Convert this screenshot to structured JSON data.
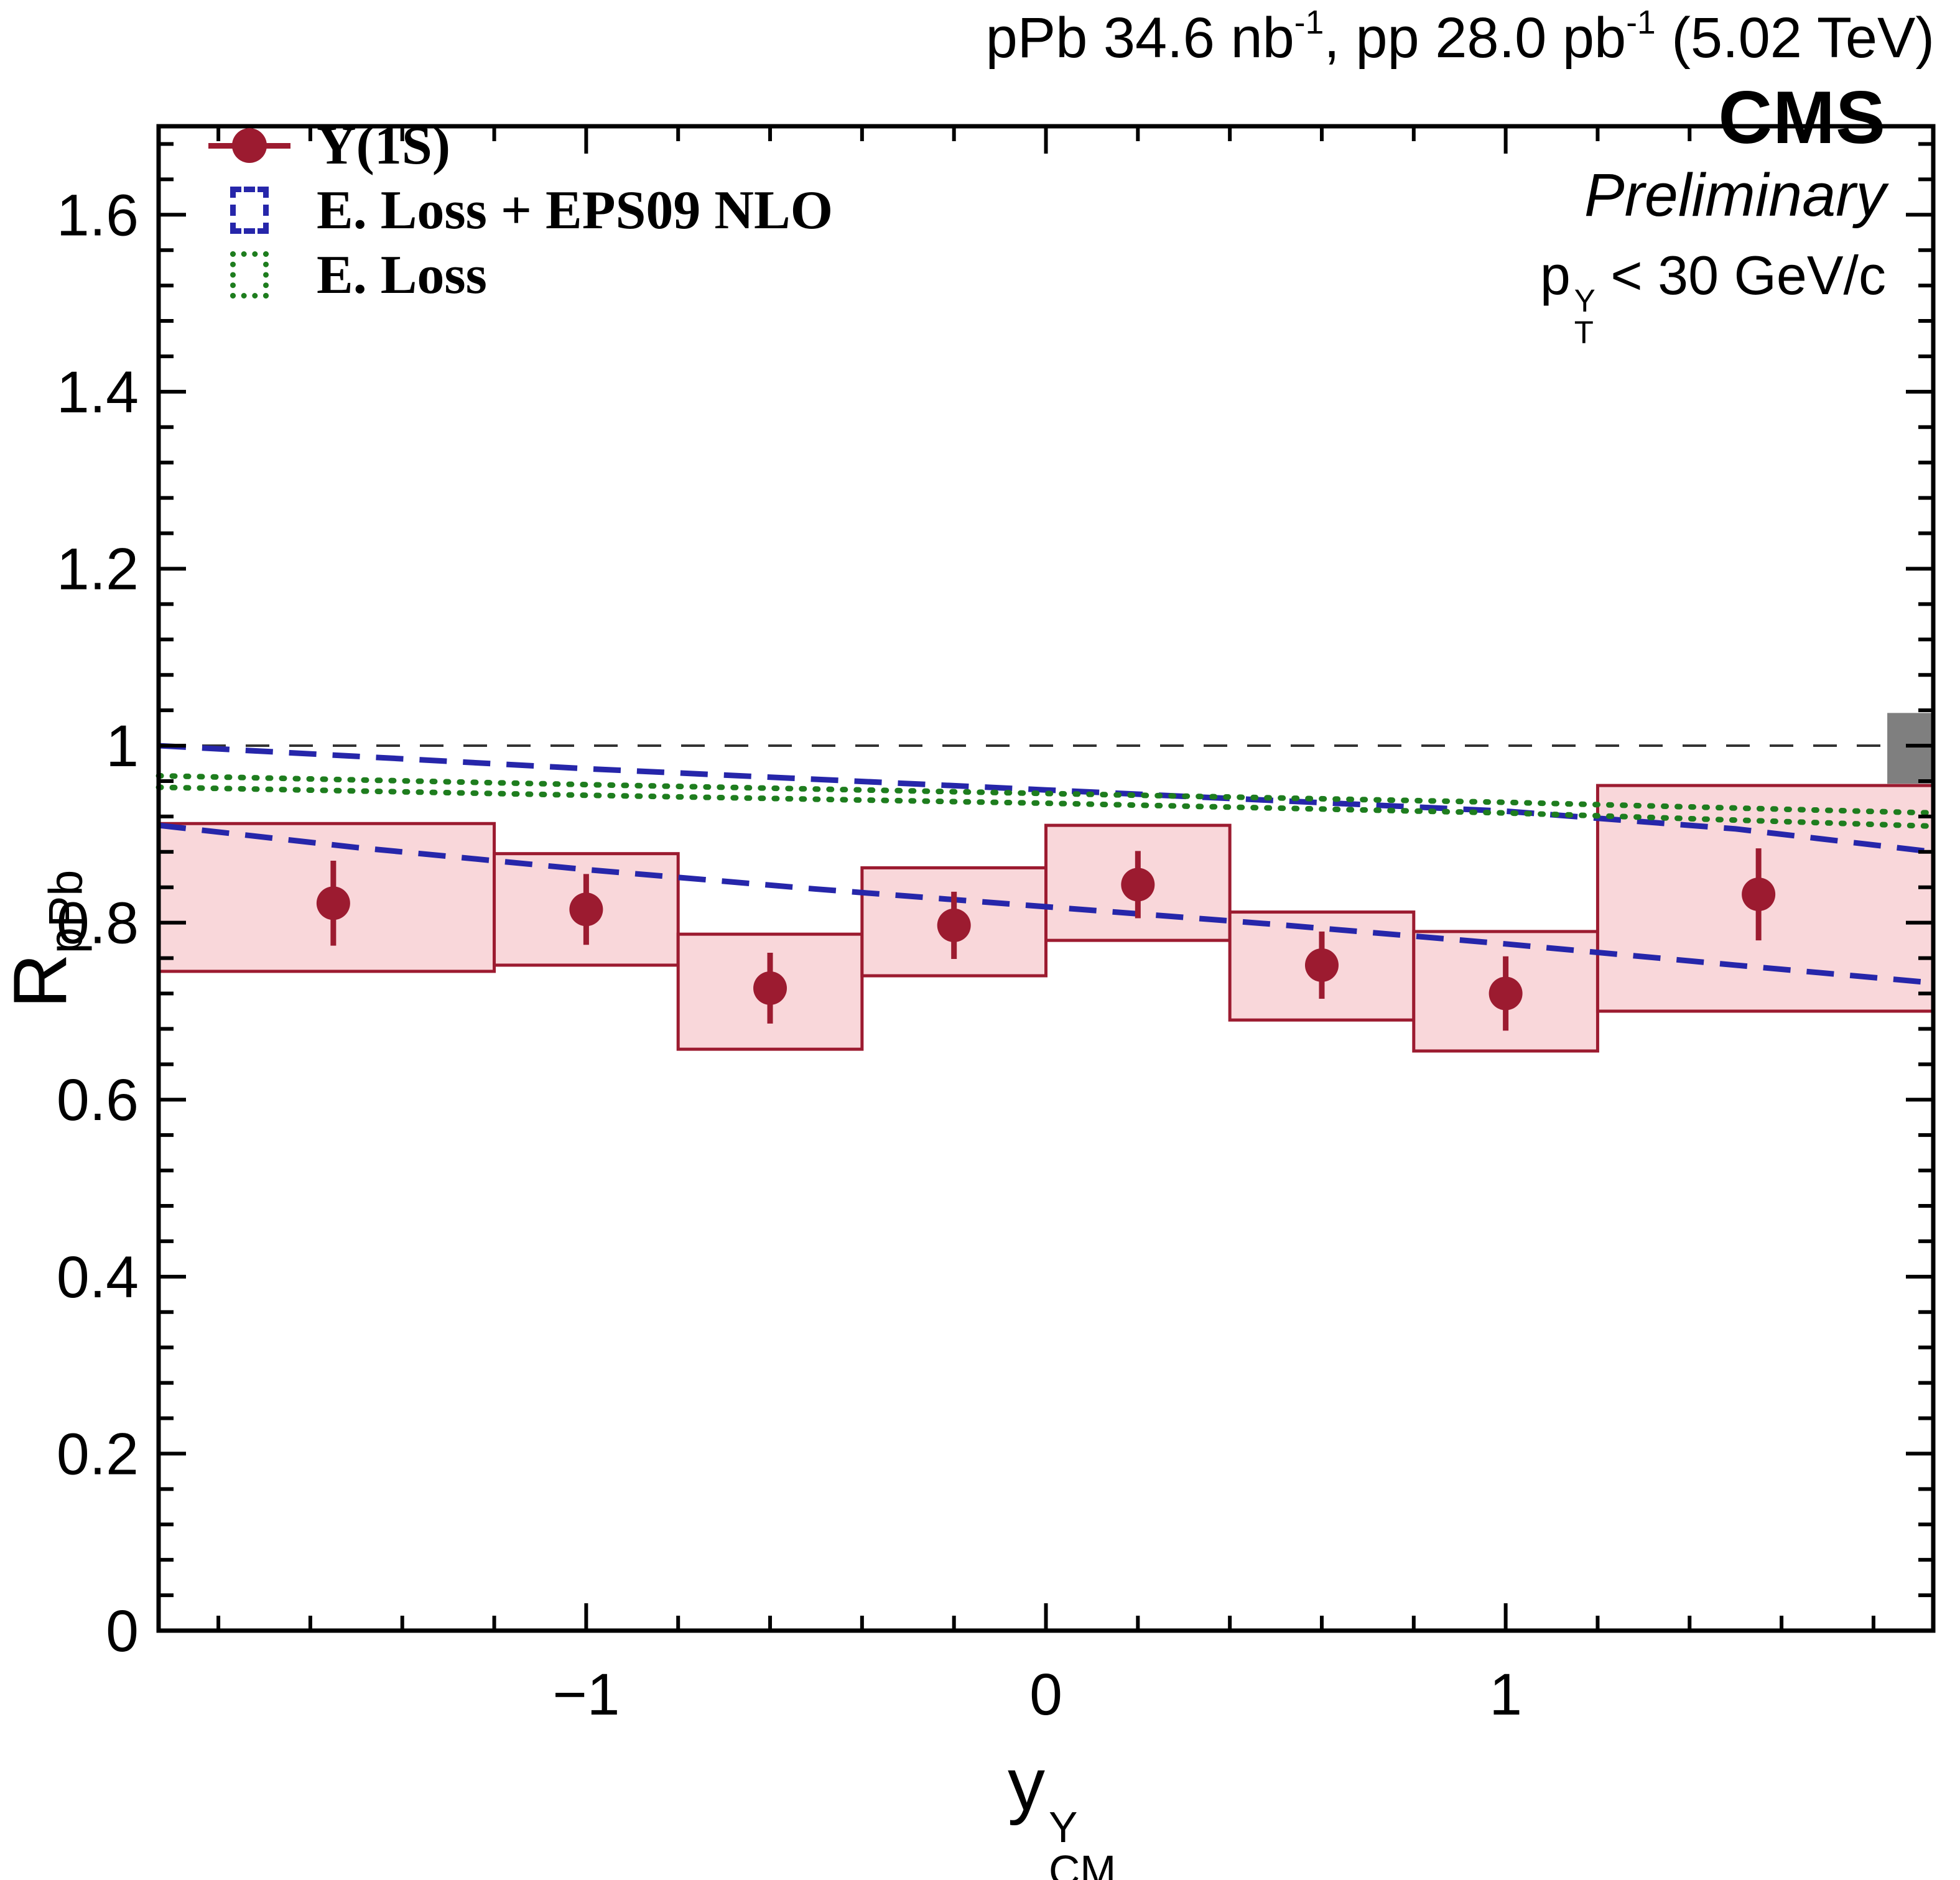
{
  "header": {
    "title_parts": [
      "pPb 34.6 nb",
      "-1",
      ", pp 28.0 pb",
      "-1",
      " (5.02 TeV)"
    ],
    "experiment": "CMS",
    "status": "Preliminary"
  },
  "annotations": {
    "pt_cut": {
      "base": "p",
      "sup": "Υ",
      "sub": "T",
      "rest": " < 30 GeV/c"
    }
  },
  "axes": {
    "x": {
      "base": "y",
      "sup": "Υ",
      "sub": "CM"
    },
    "y": {
      "base": "R",
      "sub": "pPb"
    }
  },
  "legend": {
    "items": [
      {
        "label": "Υ(1S)"
      },
      {
        "label": "E. Loss + EPS09 NLO"
      },
      {
        "label": "E. Loss"
      }
    ]
  },
  "chart_data": {
    "type": "scatter",
    "title": "pPb 34.6 nb⁻¹, pp 28.0 pb⁻¹ (5.02 TeV)",
    "xlabel": "y_CM^Υ",
    "ylabel": "R_pPb",
    "xlim": [
      -1.93,
      1.93
    ],
    "ylim": [
      0,
      1.7
    ],
    "x_ticks": [
      {
        "v": -1,
        "label": "−1"
      },
      {
        "v": 0,
        "label": "0"
      },
      {
        "v": 1,
        "label": "1"
      }
    ],
    "x_minor_step": 0.2,
    "y_ticks": [
      {
        "v": 0,
        "label": "0"
      },
      {
        "v": 0.2,
        "label": "0.2"
      },
      {
        "v": 0.4,
        "label": "0.4"
      },
      {
        "v": 0.6,
        "label": "0.6"
      },
      {
        "v": 0.8,
        "label": "0.8"
      },
      {
        "v": 1,
        "label": "1"
      },
      {
        "v": 1.2,
        "label": "1.2"
      },
      {
        "v": 1.4,
        "label": "1.4"
      },
      {
        "v": 1.6,
        "label": "1.6"
      }
    ],
    "y_minor_step": 0.04,
    "reference_line_y": 1.0,
    "colors": {
      "data": "#9c1b30",
      "data_box_fill": "#f9d7da",
      "eloss_eps09": "#2626aa",
      "eloss": "#1e7d1e",
      "lumi_box": "#7f7f7f"
    },
    "series": [
      {
        "name": "Υ(1S)",
        "type": "points",
        "points": [
          {
            "x": -1.55,
            "y": 0.822,
            "stat": 0.048,
            "bin": [
              -1.93,
              -1.2
            ],
            "syst": [
              0.745,
              0.912
            ]
          },
          {
            "x": -1.0,
            "y": 0.815,
            "stat": 0.04,
            "bin": [
              -1.2,
              -0.8
            ],
            "syst": [
              0.752,
              0.878
            ]
          },
          {
            "x": -0.6,
            "y": 0.726,
            "stat": 0.04,
            "bin": [
              -0.8,
              -0.4
            ],
            "syst": [
              0.657,
              0.787
            ]
          },
          {
            "x": -0.2,
            "y": 0.797,
            "stat": 0.038,
            "bin": [
              -0.4,
              0.0
            ],
            "syst": [
              0.74,
              0.862
            ]
          },
          {
            "x": 0.2,
            "y": 0.843,
            "stat": 0.038,
            "bin": [
              0.0,
              0.4
            ],
            "syst": [
              0.78,
              0.91
            ]
          },
          {
            "x": 0.6,
            "y": 0.752,
            "stat": 0.038,
            "bin": [
              0.4,
              0.8
            ],
            "syst": [
              0.69,
              0.812
            ]
          },
          {
            "x": 1.0,
            "y": 0.72,
            "stat": 0.042,
            "bin": [
              0.8,
              1.2
            ],
            "syst": [
              0.655,
              0.79
            ]
          },
          {
            "x": 1.55,
            "y": 0.832,
            "stat": 0.052,
            "bin": [
              1.2,
              1.93
            ],
            "syst": [
              0.7,
              0.955
            ]
          }
        ]
      },
      {
        "name": "E. Loss + EPS09 NLO",
        "type": "band",
        "style": "dashed",
        "upper": [
          [
            -1.93,
            1.0
          ],
          [
            -1.5,
            0.988
          ],
          [
            -1.0,
            0.974
          ],
          [
            -0.5,
            0.962
          ],
          [
            0,
            0.95
          ],
          [
            0.5,
            0.938
          ],
          [
            1.0,
            0.926
          ],
          [
            1.5,
            0.906
          ],
          [
            1.93,
            0.88
          ]
        ],
        "lower": [
          [
            -1.93,
            0.91
          ],
          [
            -1.5,
            0.885
          ],
          [
            -1.0,
            0.86
          ],
          [
            -0.5,
            0.838
          ],
          [
            0,
            0.818
          ],
          [
            0.5,
            0.798
          ],
          [
            1.0,
            0.776
          ],
          [
            1.5,
            0.752
          ],
          [
            1.93,
            0.732
          ]
        ]
      },
      {
        "name": "E. Loss",
        "type": "band",
        "style": "dotted",
        "upper": [
          [
            -1.93,
            0.966
          ],
          [
            -1.0,
            0.956
          ],
          [
            0,
            0.946
          ],
          [
            1.0,
            0.936
          ],
          [
            1.93,
            0.924
          ]
        ],
        "lower": [
          [
            -1.93,
            0.953
          ],
          [
            -1.0,
            0.944
          ],
          [
            0,
            0.935
          ],
          [
            1.0,
            0.924
          ],
          [
            1.93,
            0.909
          ]
        ]
      }
    ],
    "luminosity_box": {
      "x": [
        1.83,
        1.93
      ],
      "y": [
        0.957,
        1.037
      ]
    }
  }
}
